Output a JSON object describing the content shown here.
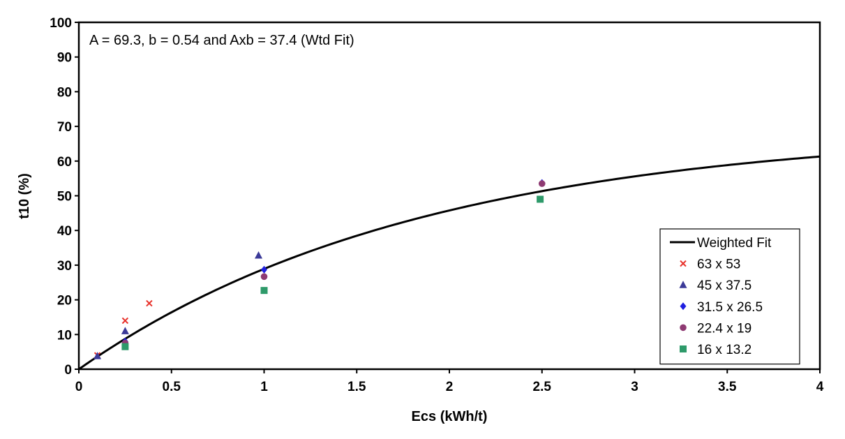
{
  "chart_data": {
    "type": "scatter",
    "annotation": "A = 69.3, b = 0.54 and Axb = 37.4 (Wtd Fit)",
    "xlabel": "Ecs  (kWh/t)",
    "ylabel": "t10 (%)",
    "xlim": [
      0,
      4
    ],
    "ylim": [
      0,
      100
    ],
    "x_ticks": [
      "0",
      "0.5",
      "1",
      "1.5",
      "2",
      "2.5",
      "3",
      "3.5",
      "4"
    ],
    "y_ticks": [
      "0",
      "10",
      "20",
      "30",
      "40",
      "50",
      "60",
      "70",
      "80",
      "90",
      "100"
    ],
    "grid": false,
    "legend_position": "bottom-right",
    "fit": {
      "name": "Weighted Fit",
      "A": 69.3,
      "b": 0.54,
      "color": "#000000"
    },
    "series": [
      {
        "name": "63 x 53",
        "marker": "x",
        "color": "#e8312a",
        "points": [
          [
            0.1,
            4.0
          ],
          [
            0.25,
            14.0
          ],
          [
            0.38,
            19.0
          ]
        ]
      },
      {
        "name": "45 x 37.5",
        "marker": "triangle",
        "color": "#3b3a98",
        "points": [
          [
            0.1,
            3.8
          ],
          [
            0.25,
            11.0
          ],
          [
            0.97,
            32.8
          ]
        ]
      },
      {
        "name": "31.5 x 26.5",
        "marker": "diamond",
        "color": "#1f1fe0",
        "points": [
          [
            0.25,
            8.0
          ],
          [
            1.0,
            28.7
          ],
          [
            2.5,
            53.7
          ]
        ]
      },
      {
        "name": "22.4 x 19",
        "marker": "circle",
        "color": "#8e3a72",
        "points": [
          [
            0.25,
            7.5
          ],
          [
            1.0,
            26.7
          ],
          [
            2.5,
            53.5
          ]
        ]
      },
      {
        "name": "16 x 13.2",
        "marker": "square",
        "color": "#2e9a6a",
        "points": [
          [
            0.25,
            6.5
          ],
          [
            1.0,
            22.7
          ],
          [
            2.49,
            49.0
          ]
        ]
      }
    ]
  }
}
